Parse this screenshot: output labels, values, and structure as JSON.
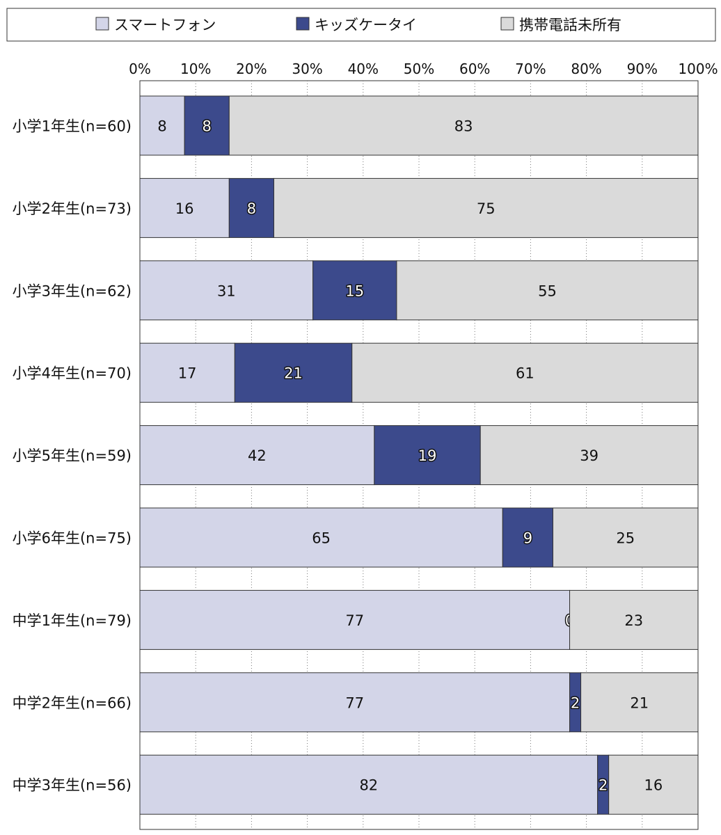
{
  "chart_data": {
    "type": "bar",
    "orientation": "horizontal",
    "stacked": true,
    "normalized": true,
    "legend_position": "top",
    "grid": true,
    "categories": [
      "小学1年生(n=60)",
      "小学2年生(n=73)",
      "小学3年生(n=62)",
      "小学4年生(n=70)",
      "小学5年生(n=59)",
      "小学6年生(n=75)",
      "中学1年生(n=79)",
      "中学2年生(n=66)",
      "中学3年生(n=56)"
    ],
    "xlim": [
      0,
      100
    ],
    "x_ticks": [
      "0%",
      "10%",
      "20%",
      "30%",
      "40%",
      "50%",
      "60%",
      "70%",
      "80%",
      "90%",
      "100%"
    ],
    "series": [
      {
        "name": "スマートフォン",
        "color": "#d3d5e8",
        "values": [
          8,
          16,
          31,
          17,
          42,
          65,
          77,
          77,
          82
        ]
      },
      {
        "name": "キッズケータイ",
        "color": "#3c4a8c",
        "values": [
          8,
          8,
          15,
          21,
          19,
          9,
          0,
          2,
          2
        ]
      },
      {
        "name": "携帯電話未所有",
        "color": "#dadada",
        "values": [
          83,
          75,
          55,
          61,
          39,
          25,
          23,
          21,
          16
        ]
      }
    ]
  }
}
